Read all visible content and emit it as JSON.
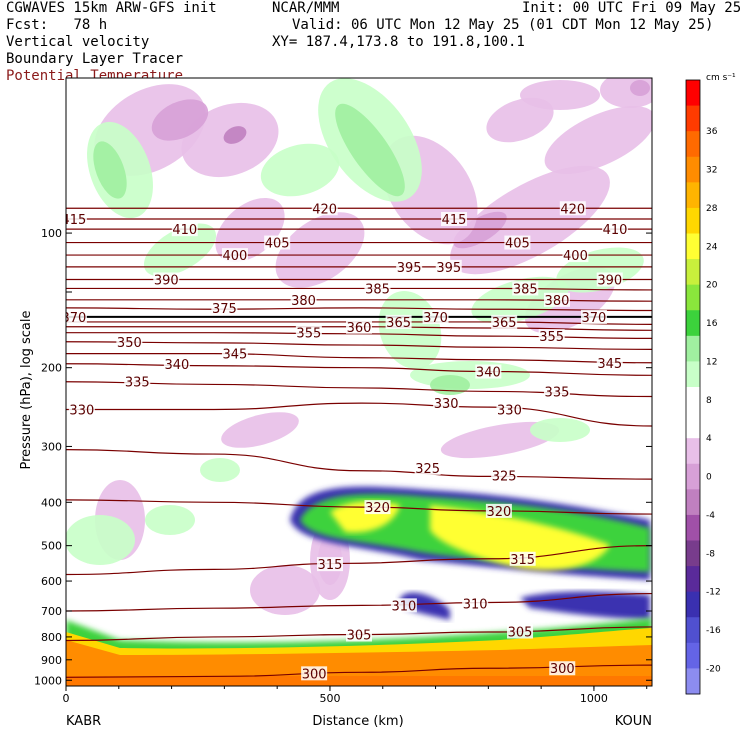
{
  "header": {
    "model": "CGWAVES 15km ARW-GFS init",
    "fcst_label": "Fcst:",
    "fcst_value": "78 h",
    "center": "NCAR/MMM",
    "init": "Init: 00 UTC Fri 09 May 25",
    "valid": "Valid: 06 UTC Mon 12 May 25 (01 CDT Mon 12 May 25)",
    "xy": "XY= 187.4,173.8 to 191.8,100.1",
    "field1": "Vertical velocity",
    "field2": "Boundary Layer Tracer",
    "field3": "Potential Temperature",
    "field3_color": "#8b1a1a"
  },
  "chart_data": {
    "type": "heatmap",
    "title": "Vertical velocity / Boundary Layer Tracer / Potential Temperature cross-section",
    "xlabel": "Distance (km)",
    "ylabel": "Pressure (hPa), log scale",
    "x_ticks": [
      "0",
      "500",
      "1000"
    ],
    "x_range": [
      0,
      1110
    ],
    "left_station": "KABR",
    "right_station": "KOUN",
    "y_ticks": [
      "100",
      "200",
      "300",
      "400",
      "500",
      "600",
      "700",
      "800",
      "900",
      "1000"
    ],
    "y_range_hpa": [
      45,
      1030
    ],
    "colorbar": {
      "unit_label": "cm s⁻¹",
      "levels": [
        "36",
        "32",
        "28",
        "24",
        "20",
        "16",
        "12",
        "8",
        "4",
        "0",
        "-4",
        "-8",
        "-12",
        "-16",
        "-20"
      ],
      "colors": [
        "#ff0000",
        "#ff3b00",
        "#ff6a00",
        "#ff8c00",
        "#ffb400",
        "#ffd700",
        "#ffff33",
        "#c8f03c",
        "#8ae63c",
        "#3cd23c",
        "#a0f0a0",
        "#c8ffc8",
        "#ffffff",
        "#ffffff",
        "#e8bfe8",
        "#d7a0d7",
        "#c080c0",
        "#a050a8",
        "#783c8c",
        "#5a2a9a",
        "#3a30b0",
        "#5050d0",
        "#6464e6",
        "#8c8cf0"
      ]
    },
    "theta_contours": [
      {
        "value": 300,
        "label": "300",
        "series": [
          [
            0,
            985
          ],
          [
            300,
            980
          ],
          [
            560,
            960
          ],
          [
            800,
            940
          ],
          [
            1110,
            925
          ]
        ]
      },
      {
        "value": 305,
        "label": "305",
        "series": [
          [
            0,
            815
          ],
          [
            280,
            800
          ],
          [
            560,
            790
          ],
          [
            800,
            780
          ],
          [
            1110,
            760
          ]
        ]
      },
      {
        "value": 310,
        "label": "310",
        "series": [
          [
            0,
            700
          ],
          [
            280,
            690
          ],
          [
            560,
            680
          ],
          [
            800,
            670
          ],
          [
            1110,
            640
          ]
        ]
      },
      {
        "value": 315,
        "label": "315",
        "series": [
          [
            0,
            580
          ],
          [
            280,
            565
          ],
          [
            520,
            548
          ],
          [
            800,
            535
          ],
          [
            1110,
            500
          ]
        ]
      },
      {
        "value": 320,
        "label": "320",
        "series": [
          [
            0,
            395
          ],
          [
            280,
            400
          ],
          [
            560,
            410
          ],
          [
            800,
            418
          ],
          [
            1110,
            425
          ]
        ]
      },
      {
        "value": 325,
        "label": "325",
        "series": [
          [
            0,
            305
          ],
          [
            280,
            312
          ],
          [
            560,
            340
          ],
          [
            800,
            350
          ],
          [
            1110,
            355
          ]
        ]
      },
      {
        "value": 330,
        "label": "330",
        "series": [
          [
            0,
            248
          ],
          [
            280,
            248
          ],
          [
            560,
            240
          ],
          [
            800,
            245
          ],
          [
            1110,
            270
          ]
        ]
      },
      {
        "value": 335,
        "label": "335",
        "series": [
          [
            0,
            215
          ],
          [
            280,
            218
          ],
          [
            560,
            222
          ],
          [
            800,
            226
          ],
          [
            1110,
            232
          ]
        ]
      },
      {
        "value": 340,
        "label": "340",
        "series": [
          [
            0,
            196
          ],
          [
            280,
            198
          ],
          [
            560,
            200
          ],
          [
            800,
            204
          ],
          [
            1110,
            208
          ]
        ]
      },
      {
        "value": 345,
        "label": "345",
        "series": [
          [
            0,
            186
          ],
          [
            280,
            186
          ],
          [
            560,
            190
          ],
          [
            800,
            192
          ],
          [
            1110,
            195
          ]
        ]
      },
      {
        "value": 350,
        "label": "350",
        "series": [
          [
            0,
            175
          ],
          [
            280,
            176
          ],
          [
            560,
            178
          ],
          [
            800,
            180
          ],
          [
            1110,
            182
          ]
        ]
      },
      {
        "value": 355,
        "label": "355",
        "series": [
          [
            0,
            167
          ],
          [
            280,
            167
          ],
          [
            560,
            168
          ],
          [
            800,
            170
          ],
          [
            1110,
            172
          ]
        ]
      },
      {
        "value": 360,
        "label": "360",
        "series": [
          [
            0,
            162
          ],
          [
            280,
            162
          ],
          [
            560,
            162
          ],
          [
            800,
            163
          ],
          [
            1110,
            165
          ]
        ]
      },
      {
        "value": 365,
        "label": "365",
        "series": [
          [
            0,
            158
          ],
          [
            280,
            158
          ],
          [
            560,
            158
          ],
          [
            800,
            158
          ],
          [
            1110,
            160
          ]
        ]
      },
      {
        "value": 370,
        "label": "370",
        "series": [
          [
            0,
            154
          ],
          [
            280,
            154
          ],
          [
            560,
            154
          ],
          [
            800,
            154
          ],
          [
            1110,
            154
          ]
        ]
      },
      {
        "value": 375,
        "label": "375",
        "series": [
          [
            0,
            147
          ],
          [
            280,
            148
          ],
          [
            560,
            147
          ],
          [
            800,
            148
          ],
          [
            1110,
            149
          ]
        ]
      },
      {
        "value": 380,
        "label": "380",
        "series": [
          [
            0,
            141
          ],
          [
            280,
            141
          ],
          [
            560,
            141
          ],
          [
            800,
            141
          ],
          [
            1110,
            142
          ]
        ]
      },
      {
        "value": 385,
        "label": "385",
        "series": [
          [
            0,
            133
          ],
          [
            280,
            133
          ],
          [
            560,
            133
          ],
          [
            800,
            133
          ],
          [
            1110,
            134
          ]
        ]
      },
      {
        "value": 390,
        "label": "390",
        "series": [
          [
            0,
            127
          ],
          [
            280,
            127
          ],
          [
            560,
            127
          ],
          [
            800,
            127
          ],
          [
            1110,
            127
          ]
        ]
      },
      {
        "value": 395,
        "label": "395",
        "series": [
          [
            0,
            119
          ],
          [
            280,
            119
          ],
          [
            560,
            119
          ],
          [
            800,
            119
          ],
          [
            1110,
            119
          ]
        ]
      },
      {
        "value": 400,
        "label": "400",
        "series": [
          [
            0,
            112
          ],
          [
            280,
            112
          ],
          [
            560,
            112
          ],
          [
            800,
            112
          ],
          [
            1110,
            112
          ]
        ]
      },
      {
        "value": 405,
        "label": "405",
        "series": [
          [
            0,
            105
          ],
          [
            280,
            105
          ],
          [
            560,
            105
          ],
          [
            800,
            105
          ],
          [
            1110,
            105
          ]
        ]
      },
      {
        "value": 410,
        "label": "410",
        "series": [
          [
            0,
            98
          ],
          [
            280,
            98
          ],
          [
            560,
            98
          ],
          [
            800,
            98
          ],
          [
            1110,
            98
          ]
        ]
      },
      {
        "value": 415,
        "label": "415",
        "series": [
          [
            0,
            93
          ],
          [
            280,
            93
          ],
          [
            560,
            93
          ],
          [
            800,
            93
          ],
          [
            1110,
            93
          ]
        ]
      },
      {
        "value": 420,
        "label": "420",
        "series": [
          [
            0,
            88
          ],
          [
            280,
            88
          ],
          [
            560,
            88
          ],
          [
            800,
            88
          ],
          [
            1110,
            88
          ]
        ]
      }
    ],
    "contour_labels": [
      {
        "text": "415",
        "x": 15,
        "p": 93
      },
      {
        "text": "410",
        "x": 225,
        "p": 98
      },
      {
        "text": "420",
        "x": 490,
        "p": 88
      },
      {
        "text": "415",
        "x": 735,
        "p": 93
      },
      {
        "text": "420",
        "x": 960,
        "p": 88
      },
      {
        "text": "410",
        "x": 1040,
        "p": 98
      },
      {
        "text": "405",
        "x": 400,
        "p": 105
      },
      {
        "text": "405",
        "x": 855,
        "p": 105
      },
      {
        "text": "400",
        "x": 320,
        "p": 112
      },
      {
        "text": "400",
        "x": 965,
        "p": 112
      },
      {
        "text": "390",
        "x": 190,
        "p": 127
      },
      {
        "text": "390",
        "x": 1030,
        "p": 127
      },
      {
        "text": "395",
        "x": 650,
        "p": 119
      },
      {
        "text": "395",
        "x": 725,
        "p": 119
      },
      {
        "text": "385",
        "x": 590,
        "p": 133
      },
      {
        "text": "385",
        "x": 870,
        "p": 133
      },
      {
        "text": "380",
        "x": 450,
        "p": 141
      },
      {
        "text": "380",
        "x": 930,
        "p": 141
      },
      {
        "text": "370",
        "x": 15,
        "p": 154
      },
      {
        "text": "375",
        "x": 300,
        "p": 147
      },
      {
        "text": "370",
        "x": 700,
        "p": 154
      },
      {
        "text": "370",
        "x": 1000,
        "p": 154
      },
      {
        "text": "360",
        "x": 555,
        "p": 162
      },
      {
        "text": "365",
        "x": 630,
        "p": 158
      },
      {
        "text": "365",
        "x": 830,
        "p": 158
      },
      {
        "text": "355",
        "x": 460,
        "p": 167
      },
      {
        "text": "355",
        "x": 920,
        "p": 170
      },
      {
        "text": "350",
        "x": 120,
        "p": 175
      },
      {
        "text": "340",
        "x": 210,
        "p": 196
      },
      {
        "text": "345",
        "x": 320,
        "p": 186
      },
      {
        "text": "340",
        "x": 800,
        "p": 204
      },
      {
        "text": "345",
        "x": 1030,
        "p": 195
      },
      {
        "text": "335",
        "x": 135,
        "p": 215
      },
      {
        "text": "335",
        "x": 930,
        "p": 226
      },
      {
        "text": "330",
        "x": 30,
        "p": 248
      },
      {
        "text": "330",
        "x": 720,
        "p": 240
      },
      {
        "text": "330",
        "x": 840,
        "p": 248
      },
      {
        "text": "325",
        "x": 685,
        "p": 335
      },
      {
        "text": "325",
        "x": 830,
        "p": 348
      },
      {
        "text": "320",
        "x": 590,
        "p": 410
      },
      {
        "text": "320",
        "x": 820,
        "p": 418
      },
      {
        "text": "315",
        "x": 500,
        "p": 550
      },
      {
        "text": "315",
        "x": 865,
        "p": 535
      },
      {
        "text": "310",
        "x": 640,
        "p": 680
      },
      {
        "text": "310",
        "x": 775,
        "p": 673
      },
      {
        "text": "305",
        "x": 555,
        "p": 790
      },
      {
        "text": "305",
        "x": 860,
        "p": 778
      },
      {
        "text": "300",
        "x": 470,
        "p": 965
      },
      {
        "text": "300",
        "x": 940,
        "p": 940
      }
    ]
  }
}
